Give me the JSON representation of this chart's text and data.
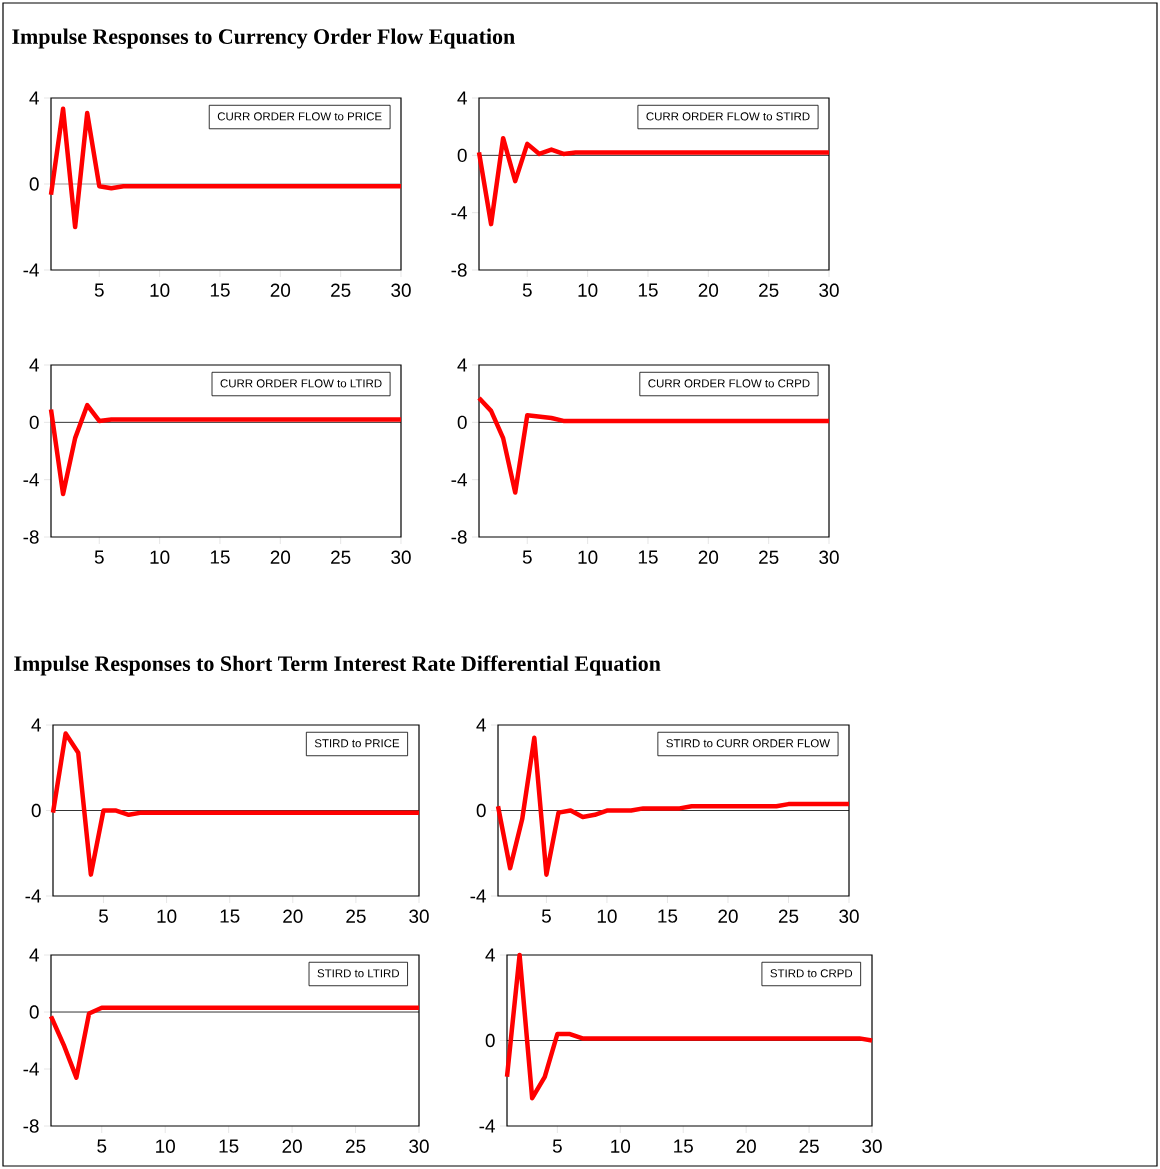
{
  "chart_data": [
    {
      "type": "line",
      "title": "Impulse Responses to Currency Order Flow Equation",
      "x": [
        1,
        2,
        3,
        4,
        5,
        6,
        7,
        8,
        9,
        10,
        11,
        12,
        13,
        14,
        15,
        16,
        17,
        18,
        19,
        20,
        21,
        22,
        23,
        24,
        25,
        26,
        27,
        28,
        29,
        30
      ],
      "series": [
        {
          "name": "CURR ORDER FLOW to PRICE",
          "color": "#ff0000",
          "values": [
            -0.5,
            3.5,
            -2.0,
            3.3,
            -0.1,
            -0.2,
            -0.1,
            -0.1,
            -0.1,
            -0.1,
            -0.1,
            -0.1,
            -0.1,
            -0.1,
            -0.1,
            -0.1,
            -0.1,
            -0.1,
            -0.1,
            -0.1,
            -0.1,
            -0.1,
            -0.1,
            -0.1,
            -0.1,
            -0.1,
            -0.1,
            -0.1,
            -0.1,
            -0.1
          ]
        }
      ],
      "xlim": [
        1,
        30
      ],
      "xticks": [
        5,
        10,
        15,
        20,
        25,
        30
      ],
      "ylim": [
        -4,
        4
      ],
      "yticks": [
        -4,
        0,
        4
      ],
      "legend": "top right",
      "ref_lines": [
        {
          "axis": "y",
          "value": 0,
          "color": "#808080"
        }
      ]
    },
    {
      "type": "line",
      "x": [
        1,
        2,
        3,
        4,
        5,
        6,
        7,
        8,
        9,
        10,
        11,
        12,
        13,
        14,
        15,
        16,
        17,
        18,
        19,
        20,
        21,
        22,
        23,
        24,
        25,
        26,
        27,
        28,
        29,
        30
      ],
      "series": [
        {
          "name": "CURR ORDER FLOW to STIRD",
          "color": "#ff0000",
          "values": [
            0.2,
            -4.8,
            1.2,
            -1.8,
            0.8,
            0.1,
            0.4,
            0.1,
            0.2,
            0.2,
            0.2,
            0.2,
            0.2,
            0.2,
            0.2,
            0.2,
            0.2,
            0.2,
            0.2,
            0.2,
            0.2,
            0.2,
            0.2,
            0.2,
            0.2,
            0.2,
            0.2,
            0.2,
            0.2,
            0.2
          ]
        }
      ],
      "xlim": [
        1,
        30
      ],
      "xticks": [
        5,
        10,
        15,
        20,
        25,
        30
      ],
      "ylim": [
        -8,
        4
      ],
      "yticks": [
        -8,
        -4,
        0,
        4
      ],
      "legend": "top right",
      "ref_lines": [
        {
          "axis": "y",
          "value": 0,
          "color": "#000000"
        }
      ]
    },
    {
      "type": "line",
      "x": [
        1,
        2,
        3,
        4,
        5,
        6,
        7,
        8,
        9,
        10,
        11,
        12,
        13,
        14,
        15,
        16,
        17,
        18,
        19,
        20,
        21,
        22,
        23,
        24,
        25,
        26,
        27,
        28,
        29,
        30
      ],
      "series": [
        {
          "name": "CURR ORDER FLOW to LTIRD",
          "color": "#ff0000",
          "values": [
            0.9,
            -5.0,
            -1.1,
            1.2,
            0.1,
            0.2,
            0.2,
            0.2,
            0.2,
            0.2,
            0.2,
            0.2,
            0.2,
            0.2,
            0.2,
            0.2,
            0.2,
            0.2,
            0.2,
            0.2,
            0.2,
            0.2,
            0.2,
            0.2,
            0.2,
            0.2,
            0.2,
            0.2,
            0.2,
            0.2
          ]
        }
      ],
      "xlim": [
        1,
        30
      ],
      "xticks": [
        5,
        10,
        15,
        20,
        25,
        30
      ],
      "ylim": [
        -8,
        4
      ],
      "yticks": [
        -8,
        -4,
        0,
        4
      ],
      "legend": "top right",
      "ref_lines": [
        {
          "axis": "y",
          "value": 0,
          "color": "#000000"
        }
      ]
    },
    {
      "type": "line",
      "x": [
        1,
        2,
        3,
        4,
        5,
        6,
        7,
        8,
        9,
        10,
        11,
        12,
        13,
        14,
        15,
        16,
        17,
        18,
        19,
        20,
        21,
        22,
        23,
        24,
        25,
        26,
        27,
        28,
        29,
        30
      ],
      "series": [
        {
          "name": "CURR ORDER FLOW to CRPD",
          "color": "#ff0000",
          "values": [
            1.7,
            0.8,
            -1.1,
            -4.9,
            0.5,
            0.4,
            0.3,
            0.1,
            0.1,
            0.1,
            0.1,
            0.1,
            0.1,
            0.1,
            0.1,
            0.1,
            0.1,
            0.1,
            0.1,
            0.1,
            0.1,
            0.1,
            0.1,
            0.1,
            0.1,
            0.1,
            0.1,
            0.1,
            0.1,
            0.1
          ]
        }
      ],
      "xlim": [
        1,
        30
      ],
      "xticks": [
        5,
        10,
        15,
        20,
        25,
        30
      ],
      "ylim": [
        -8,
        4
      ],
      "yticks": [
        -8,
        -4,
        0,
        4
      ],
      "legend": "top right",
      "ref_lines": [
        {
          "axis": "y",
          "value": 0,
          "color": "#000000"
        }
      ]
    },
    {
      "type": "line",
      "title": "Impulse Responses to Short Term Interest Rate Differential Equation",
      "x": [
        1,
        2,
        3,
        4,
        5,
        6,
        7,
        8,
        9,
        10,
        11,
        12,
        13,
        14,
        15,
        16,
        17,
        18,
        19,
        20,
        21,
        22,
        23,
        24,
        25,
        26,
        27,
        28,
        29,
        30
      ],
      "series": [
        {
          "name": "STIRD  to  PRICE",
          "color": "#ff0000",
          "values": [
            -0.1,
            3.6,
            2.7,
            -3.0,
            0.0,
            0.0,
            -0.2,
            -0.1,
            -0.1,
            -0.1,
            -0.1,
            -0.1,
            -0.1,
            -0.1,
            -0.1,
            -0.1,
            -0.1,
            -0.1,
            -0.1,
            -0.1,
            -0.1,
            -0.1,
            -0.1,
            -0.1,
            -0.1,
            -0.1,
            -0.1,
            -0.1,
            -0.1,
            -0.1
          ]
        }
      ],
      "xlim": [
        1,
        30
      ],
      "xticks": [
        5,
        10,
        15,
        20,
        25,
        30
      ],
      "ylim": [
        -4,
        4
      ],
      "yticks": [
        -4,
        0,
        4
      ],
      "legend": "top right",
      "ref_lines": [
        {
          "axis": "y",
          "value": 0,
          "color": "#000000"
        }
      ]
    },
    {
      "type": "line",
      "x": [
        1,
        2,
        3,
        4,
        5,
        6,
        7,
        8,
        9,
        10,
        11,
        12,
        13,
        14,
        15,
        16,
        17,
        18,
        19,
        20,
        21,
        22,
        23,
        24,
        25,
        26,
        27,
        28,
        29,
        30
      ],
      "series": [
        {
          "name": "STIRD to CURR ORDER FLOW",
          "color": "#ff0000",
          "values": [
            0.2,
            -2.7,
            -0.4,
            3.4,
            -3.0,
            -0.1,
            0.0,
            -0.3,
            -0.2,
            0.0,
            0.0,
            0.0,
            0.1,
            0.1,
            0.1,
            0.1,
            0.2,
            0.2,
            0.2,
            0.2,
            0.2,
            0.2,
            0.2,
            0.2,
            0.3,
            0.3,
            0.3,
            0.3,
            0.3,
            0.3
          ]
        }
      ],
      "xlim": [
        1,
        30
      ],
      "xticks": [
        5,
        10,
        15,
        20,
        25,
        30
      ],
      "ylim": [
        -4,
        4
      ],
      "yticks": [
        -4,
        0,
        4
      ],
      "legend": "top right",
      "ref_lines": [
        {
          "axis": "y",
          "value": 0,
          "color": "#000000"
        }
      ]
    },
    {
      "type": "line",
      "x": [
        1,
        2,
        3,
        4,
        5,
        6,
        7,
        8,
        9,
        10,
        11,
        12,
        13,
        14,
        15,
        16,
        17,
        18,
        19,
        20,
        21,
        22,
        23,
        24,
        25,
        26,
        27,
        28,
        29,
        30
      ],
      "series": [
        {
          "name": "STIRD to  LTIRD",
          "color": "#ff0000",
          "values": [
            -0.3,
            -2.3,
            -4.6,
            -0.1,
            0.3,
            0.3,
            0.3,
            0.3,
            0.3,
            0.3,
            0.3,
            0.3,
            0.3,
            0.3,
            0.3,
            0.3,
            0.3,
            0.3,
            0.3,
            0.3,
            0.3,
            0.3,
            0.3,
            0.3,
            0.3,
            0.3,
            0.3,
            0.3,
            0.3,
            0.3
          ]
        }
      ],
      "xlim": [
        1,
        30
      ],
      "xticks": [
        5,
        10,
        15,
        20,
        25,
        30
      ],
      "ylim": [
        -8,
        4
      ],
      "yticks": [
        -8,
        -4,
        0,
        4
      ],
      "legend": "top right",
      "ref_lines": [
        {
          "axis": "y",
          "value": 0,
          "color": "#000000"
        }
      ]
    },
    {
      "type": "line",
      "x": [
        1,
        2,
        3,
        4,
        5,
        6,
        7,
        8,
        9,
        10,
        11,
        12,
        13,
        14,
        15,
        16,
        17,
        18,
        19,
        20,
        21,
        22,
        23,
        24,
        25,
        26,
        27,
        28,
        29,
        30
      ],
      "series": [
        {
          "name": "STIRD to  CRPD",
          "color": "#ff0000",
          "values": [
            -1.7,
            4.0,
            -2.7,
            -1.7,
            0.3,
            0.3,
            0.1,
            0.1,
            0.1,
            0.1,
            0.1,
            0.1,
            0.1,
            0.1,
            0.1,
            0.1,
            0.1,
            0.1,
            0.1,
            0.1,
            0.1,
            0.1,
            0.1,
            0.1,
            0.1,
            0.1,
            0.1,
            0.1,
            0.1,
            0.0
          ]
        }
      ],
      "xlim": [
        1,
        30
      ],
      "xticks": [
        5,
        10,
        15,
        20,
        25,
        30
      ],
      "ylim": [
        -4,
        4
      ],
      "yticks": [
        -4,
        0,
        4
      ],
      "legend": "top right",
      "ref_lines": [
        {
          "axis": "y",
          "value": 0,
          "color": "#000000"
        }
      ]
    }
  ]
}
